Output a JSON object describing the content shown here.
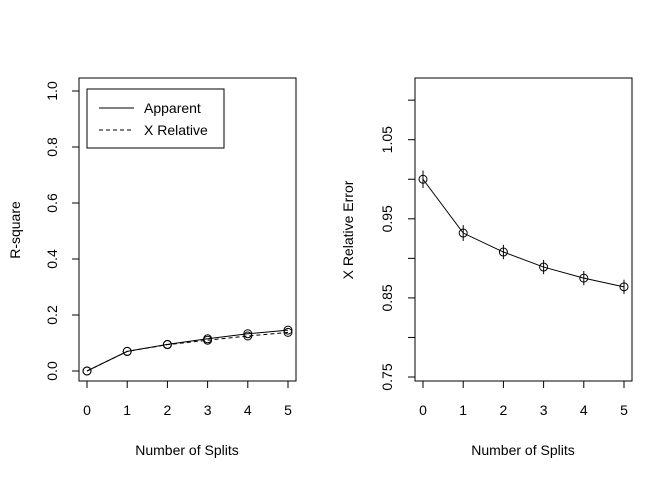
{
  "chart_data": [
    {
      "type": "line",
      "title": "",
      "xlabel": "Number of Splits",
      "ylabel": "R-square",
      "xlim": [
        0,
        5
      ],
      "ylim": [
        0,
        1
      ],
      "x_ticks": [
        "0",
        "1",
        "2",
        "3",
        "4",
        "5"
      ],
      "y_ticks": [
        "0.0",
        "0.2",
        "0.4",
        "0.6",
        "0.8",
        "1.0"
      ],
      "legend_position": "top-left",
      "series": [
        {
          "name": "Apparent",
          "line_style": "solid",
          "x": [
            0,
            1,
            2,
            3,
            4,
            5
          ],
          "values": [
            0.0,
            0.07,
            0.095,
            0.115,
            0.133,
            0.146
          ]
        },
        {
          "name": "X Relative",
          "line_style": "dashed",
          "x": [
            0,
            1,
            2,
            3,
            4,
            5
          ],
          "values": [
            0.0,
            0.07,
            0.094,
            0.11,
            0.125,
            0.138
          ]
        }
      ],
      "grid": false
    },
    {
      "type": "line",
      "title": "",
      "xlabel": "Number of Splits",
      "ylabel": "X Relative Error",
      "xlim": [
        0,
        5
      ],
      "ylim": [
        0.75,
        1.12
      ],
      "x_ticks": [
        "0",
        "1",
        "2",
        "3",
        "4",
        "5"
      ],
      "y_ticks": [
        "0.75",
        "0.85",
        "0.95",
        "1.05"
      ],
      "series": [
        {
          "x": [
            0,
            1,
            2,
            3,
            4,
            5
          ],
          "values": [
            1.0,
            0.932,
            0.908,
            0.889,
            0.875,
            0.864
          ],
          "error": [
            0.011,
            0.01,
            0.009,
            0.009,
            0.009,
            0.009
          ]
        }
      ],
      "grid": false
    }
  ]
}
